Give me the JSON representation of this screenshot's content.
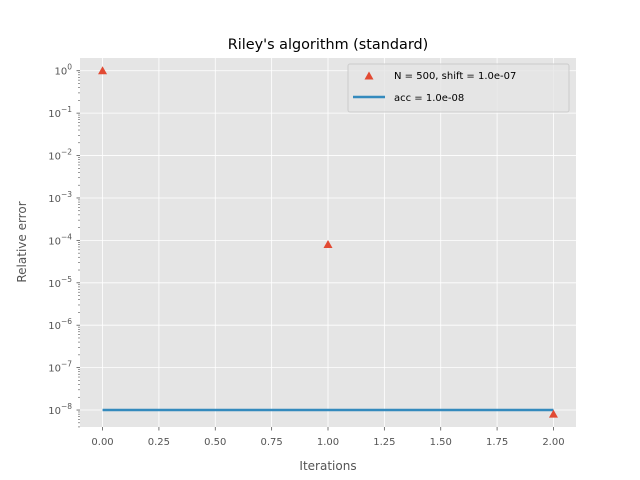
{
  "chart_data": {
    "type": "scatter",
    "title": "Riley's algorithm (standard)",
    "xlabel": "Iterations",
    "ylabel": "Relative error",
    "yscale": "log",
    "xlim": [
      -0.1,
      2.1
    ],
    "ylim_exp": [
      -8.4,
      0.3
    ],
    "grid": true,
    "x_ticks": [
      0.0,
      0.25,
      0.5,
      0.75,
      1.0,
      1.25,
      1.5,
      1.75,
      2.0
    ],
    "x_tick_labels": [
      "0.00",
      "0.25",
      "0.50",
      "0.75",
      "1.00",
      "1.25",
      "1.50",
      "1.75",
      "2.00"
    ],
    "y_tick_exponents": [
      0,
      -1,
      -2,
      -3,
      -4,
      -5,
      -6,
      -7,
      -8
    ],
    "y_tick_bases": [
      "10",
      "10",
      "10",
      "10",
      "10",
      "10",
      "10",
      "10",
      "10"
    ],
    "y_tick_sups": [
      "0",
      "−1",
      "−2",
      "−3",
      "−4",
      "−5",
      "−6",
      "−7",
      "−8"
    ],
    "series": [
      {
        "name": "N = 500, shift = 1.0e-07",
        "kind": "marker",
        "marker": "triangle",
        "color": "#E24A33",
        "x": [
          0,
          1,
          2
        ],
        "y": [
          1.0,
          8e-05,
          8e-09
        ]
      },
      {
        "name": "acc = 1.0e-08",
        "kind": "line",
        "color": "#348ABD",
        "x": [
          0,
          2
        ],
        "y": [
          1e-08,
          1e-08
        ]
      }
    ],
    "legend_position": "top-right"
  },
  "colors": {
    "axes_background": "#E5E5E5",
    "grid": "#FFFFFF",
    "tick": "#555555"
  }
}
